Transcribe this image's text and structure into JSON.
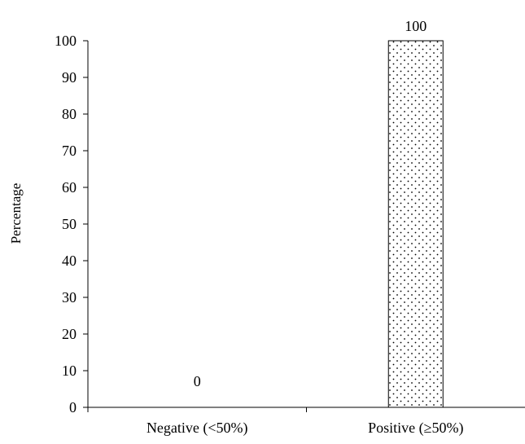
{
  "chart_data": {
    "type": "bar",
    "categories": [
      "Negative (<50%)",
      "Positive (≥50%)"
    ],
    "values": [
      0,
      100
    ],
    "data_labels": [
      "0",
      "100"
    ],
    "title": "",
    "xlabel": "",
    "ylabel": "Percentage",
    "ylim": [
      0,
      100
    ],
    "yticks": [
      0,
      10,
      20,
      30,
      40,
      50,
      60,
      70,
      80,
      90,
      100
    ],
    "grid": false,
    "legend": "none",
    "bar_fill": "dotted",
    "colors": {
      "axis": "#000000",
      "bar_border": "#000000",
      "bar_background": "#ffffff",
      "dot": "#000000"
    }
  }
}
